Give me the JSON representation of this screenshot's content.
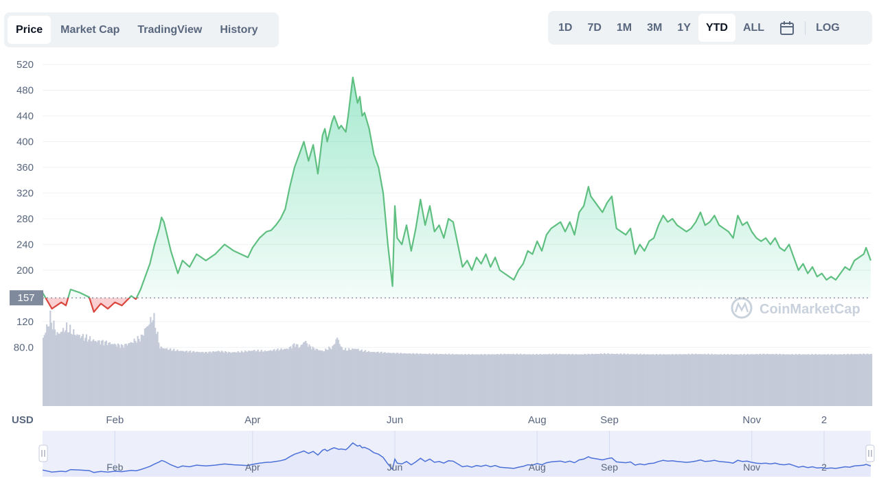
{
  "tabs": [
    {
      "label": "Price",
      "active": true
    },
    {
      "label": "Market Cap",
      "active": false
    },
    {
      "label": "TradingView",
      "active": false
    },
    {
      "label": "History",
      "active": false
    }
  ],
  "ranges": [
    {
      "label": "1D",
      "active": false
    },
    {
      "label": "7D",
      "active": false
    },
    {
      "label": "1M",
      "active": false
    },
    {
      "label": "3M",
      "active": false
    },
    {
      "label": "1Y",
      "active": false
    },
    {
      "label": "YTD",
      "active": true
    },
    {
      "label": "ALL",
      "active": false
    }
  ],
  "calendar_icon": "calendar-icon",
  "log_label": "LOG",
  "watermark": "CoinMarketCap",
  "colors": {
    "up": "#16c784",
    "up_line": "#5fbf80",
    "down": "#d9443b",
    "volume": "#c5cbd8",
    "nav_line": "#4a6fd8",
    "nav_fill": "#e4e8f8"
  },
  "chart_data": {
    "type": "area",
    "ylabel": "USD",
    "baseline_price": 157,
    "current_price_label": "157",
    "y_range": [
      65,
      525
    ],
    "yticks": [
      520,
      480,
      440,
      400,
      360,
      320,
      280,
      240,
      200,
      120,
      80.0
    ],
    "ytick_labels": [
      "520",
      "480",
      "440",
      "400",
      "360",
      "320",
      "280",
      "240",
      "200",
      "120",
      "80.0"
    ],
    "x_range": [
      0,
      355
    ],
    "xticks": [
      {
        "label": "Feb",
        "day": 31
      },
      {
        "label": "Apr",
        "day": 90
      },
      {
        "label": "Jun",
        "day": 151
      },
      {
        "label": "Aug",
        "day": 212
      },
      {
        "label": "Sep",
        "day": 243
      },
      {
        "label": "Nov",
        "day": 304
      },
      {
        "label": "2",
        "day": 335
      }
    ],
    "price_series": {
      "day": [
        0,
        4,
        8,
        10,
        12,
        16,
        20,
        22,
        25,
        28,
        31,
        34,
        38,
        40,
        42,
        44,
        46,
        48,
        50,
        51,
        52,
        53,
        55,
        58,
        60,
        63,
        66,
        70,
        74,
        78,
        82,
        85,
        88,
        90,
        93,
        96,
        98,
        100,
        102,
        104,
        106,
        108,
        110,
        112,
        114,
        116,
        118,
        120,
        121,
        122,
        124,
        125,
        127,
        128,
        130,
        131,
        132,
        133,
        134,
        135,
        136,
        137,
        138,
        140,
        142,
        144,
        146,
        148,
        150,
        151,
        152,
        154,
        156,
        158,
        160,
        162,
        164,
        166,
        168,
        170,
        172,
        174,
        176,
        178,
        180,
        182,
        184,
        186,
        188,
        190,
        192,
        194,
        196,
        198,
        200,
        202,
        204,
        206,
        208,
        210,
        212,
        214,
        216,
        218,
        220,
        222,
        224,
        226,
        228,
        230,
        232,
        234,
        235,
        236,
        238,
        240,
        242,
        244,
        246,
        248,
        250,
        252,
        254,
        256,
        258,
        260,
        262,
        264,
        266,
        268,
        270,
        272,
        274,
        276,
        278,
        280,
        282,
        284,
        286,
        288,
        290,
        292,
        294,
        296,
        298,
        300,
        302,
        304,
        306,
        308,
        310,
        312,
        314,
        316,
        318,
        320,
        322,
        324,
        326,
        328,
        330,
        332,
        334,
        336,
        338,
        340,
        342,
        344,
        346,
        348,
        350,
        352,
        353,
        355
      ],
      "price": [
        165,
        140,
        150,
        145,
        170,
        165,
        158,
        135,
        148,
        140,
        150,
        145,
        160,
        155,
        170,
        190,
        210,
        240,
        265,
        282,
        275,
        260,
        230,
        195,
        215,
        205,
        225,
        215,
        225,
        240,
        230,
        225,
        220,
        235,
        250,
        260,
        262,
        270,
        280,
        295,
        330,
        360,
        380,
        400,
        370,
        395,
        350,
        410,
        420,
        400,
        430,
        440,
        420,
        425,
        415,
        440,
        470,
        500,
        480,
        460,
        470,
        440,
        445,
        420,
        380,
        360,
        320,
        240,
        175,
        300,
        250,
        240,
        270,
        230,
        265,
        310,
        270,
        300,
        260,
        270,
        250,
        280,
        275,
        240,
        205,
        215,
        200,
        220,
        210,
        225,
        205,
        220,
        200,
        195,
        190,
        185,
        200,
        210,
        230,
        225,
        245,
        230,
        255,
        265,
        270,
        275,
        260,
        275,
        255,
        290,
        300,
        330,
        315,
        310,
        300,
        290,
        305,
        315,
        265,
        260,
        255,
        265,
        225,
        240,
        230,
        245,
        250,
        270,
        285,
        275,
        280,
        270,
        265,
        260,
        265,
        275,
        290,
        270,
        275,
        285,
        270,
        265,
        260,
        250,
        285,
        270,
        275,
        260,
        250,
        245,
        250,
        240,
        250,
        235,
        230,
        240,
        220,
        200,
        210,
        195,
        205,
        190,
        195,
        185,
        190,
        185,
        195,
        205,
        200,
        215,
        220,
        225,
        235,
        215
      ]
    },
    "volume_series": {
      "day": [
        0,
        3,
        6,
        10,
        14,
        18,
        22,
        26,
        30,
        34,
        38,
        42,
        44,
        46,
        47,
        48,
        50,
        55,
        60,
        65,
        70,
        75,
        80,
        85,
        90,
        95,
        100,
        105,
        108,
        110,
        112,
        114,
        116,
        118,
        120,
        122,
        124,
        126,
        128,
        130,
        132,
        134,
        136,
        138,
        140,
        145,
        150,
        160,
        170,
        180,
        190,
        200,
        210,
        220,
        230,
        240,
        250,
        260,
        270,
        280,
        290,
        300,
        310,
        320,
        330,
        340,
        350,
        355
      ],
      "volume": [
        95,
        125,
        100,
        110,
        100,
        95,
        90,
        88,
        85,
        82,
        88,
        95,
        110,
        120,
        128,
        115,
        80,
        76,
        74,
        73,
        72,
        74,
        72,
        73,
        75,
        74,
        76,
        78,
        85,
        80,
        90,
        82,
        78,
        76,
        74,
        78,
        80,
        95,
        78,
        76,
        77,
        78,
        75,
        74,
        73,
        72,
        71,
        70,
        69.5,
        69,
        69,
        69.5,
        69,
        69.5,
        69,
        70,
        69.5,
        69,
        69,
        69.5,
        69,
        69,
        69.5,
        69,
        69,
        69,
        69.5,
        69.5
      ]
    },
    "navigator": {
      "xticks": [
        "Feb",
        "Apr",
        "Jun",
        "Aug",
        "Sep",
        "Nov",
        "2"
      ]
    }
  }
}
